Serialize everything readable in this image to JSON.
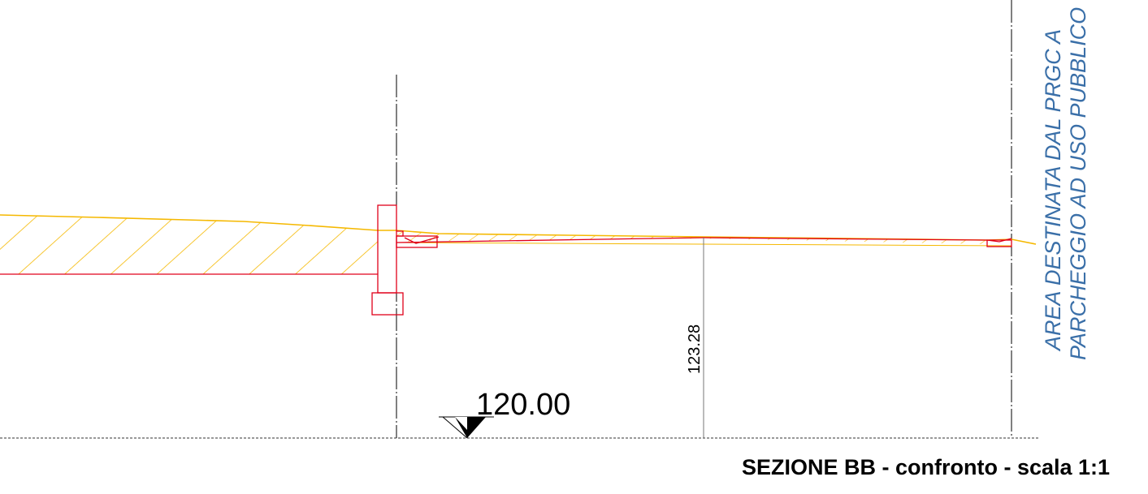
{
  "drawing": {
    "reference_elevation": "120.00",
    "dimension_value": "123.28",
    "area_label_line1": "AREA DESTINATA DAL PRGC A",
    "area_label_line2": "PARCHEGGIO AD USO PUBBLICO",
    "caption": "SEZIONE BB - confronto - scala 1:1",
    "colors": {
      "terrain_hatch": "#f5b800",
      "project_line": "#e0001a",
      "axis_line": "#000000",
      "label_blue": "#3a6fa8"
    }
  }
}
